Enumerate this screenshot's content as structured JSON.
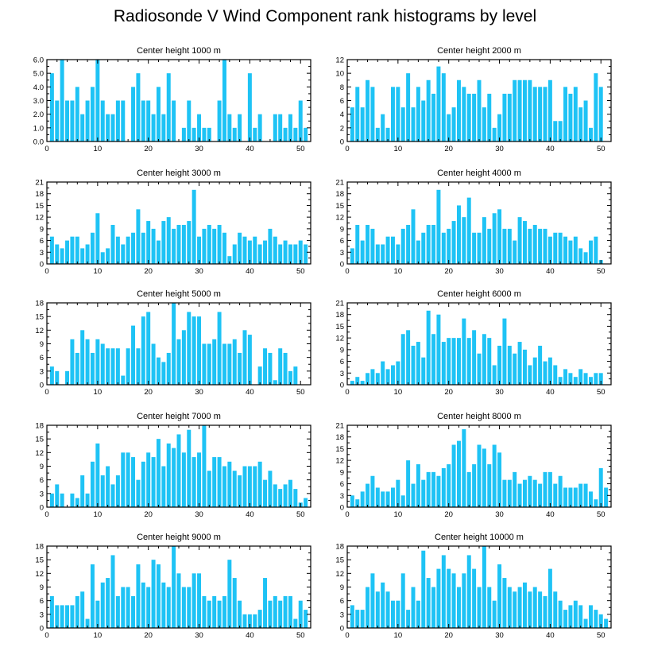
{
  "chart_data": {
    "type": "bar",
    "title": "Radiosonde V Wind Component rank histograms by level",
    "bar_color": "#1ec3f5",
    "x_ticks": [
      0,
      10,
      20,
      30,
      40,
      50
    ],
    "xlim": [
      0,
      52
    ],
    "panels": [
      {
        "title": "Center height 1000 m",
        "ylim": [
          0,
          6
        ],
        "y_ticks": [
          0,
          1,
          2,
          3,
          4,
          5,
          6
        ],
        "y_tick_labels": [
          "0.0",
          "1.0",
          "2.0",
          "3.0",
          "4.0",
          "5.0",
          "6.0"
        ],
        "values": [
          5,
          3,
          6,
          3,
          3,
          4,
          2,
          3,
          4,
          6,
          3,
          2,
          2,
          3,
          3,
          0,
          4,
          5,
          3,
          3,
          2,
          4,
          2,
          5,
          3,
          0,
          1,
          3,
          1,
          2,
          1,
          1,
          0,
          3,
          6,
          2,
          1,
          2,
          0,
          5,
          1,
          2,
          0,
          0,
          2,
          2,
          1,
          2,
          1,
          3,
          1
        ]
      },
      {
        "title": "Center height 2000 m",
        "ylim": [
          0,
          12
        ],
        "y_ticks": [
          0,
          2,
          4,
          6,
          8,
          10,
          12
        ],
        "y_tick_labels": [
          "0",
          "2",
          "4",
          "6",
          "8",
          "10",
          "12"
        ],
        "values": [
          5,
          8,
          5,
          9,
          8,
          2,
          4,
          2,
          8,
          8,
          5,
          10,
          5,
          8,
          6,
          9,
          7,
          11,
          10,
          4,
          5,
          9,
          8,
          7,
          7,
          9,
          5,
          7,
          2,
          4,
          7,
          7,
          9,
          9,
          9,
          9,
          8,
          8,
          8,
          9,
          3,
          3,
          8,
          7,
          8,
          5,
          6,
          2,
          10,
          8,
          0
        ]
      },
      {
        "title": "Center height 3000 m",
        "ylim": [
          0,
          21
        ],
        "y_ticks": [
          0,
          3,
          6,
          9,
          12,
          15,
          18,
          21
        ],
        "y_tick_labels": [
          "0",
          "3",
          "6",
          "9",
          "12",
          "15",
          "18",
          "21"
        ],
        "values": [
          7,
          5,
          4,
          6,
          7,
          7,
          4,
          5,
          8,
          13,
          3,
          4,
          10,
          7,
          5,
          7,
          8,
          14,
          8,
          11,
          9,
          6,
          11,
          12,
          9,
          10,
          10,
          11,
          19,
          7,
          9,
          10,
          9,
          10,
          8,
          2,
          5,
          8,
          7,
          6,
          7,
          5,
          6,
          9,
          7,
          5,
          6,
          5,
          5,
          6,
          5
        ]
      },
      {
        "title": "Center height 4000 m",
        "ylim": [
          0,
          21
        ],
        "y_ticks": [
          0,
          3,
          6,
          9,
          12,
          15,
          18,
          21
        ],
        "y_tick_labels": [
          "0",
          "3",
          "6",
          "9",
          "12",
          "15",
          "18",
          "21"
        ],
        "values": [
          4,
          10,
          6,
          10,
          9,
          5,
          5,
          7,
          7,
          5,
          9,
          10,
          14,
          6,
          8,
          10,
          10,
          19,
          8,
          9,
          11,
          15,
          12,
          17,
          8,
          8,
          12,
          9,
          13,
          14,
          9,
          9,
          6,
          12,
          11,
          9,
          10,
          9,
          9,
          7,
          8,
          8,
          7,
          6,
          7,
          4,
          3,
          6,
          7,
          1,
          0
        ]
      },
      {
        "title": "Center height 5000 m",
        "ylim": [
          0,
          18
        ],
        "y_ticks": [
          0,
          3,
          6,
          9,
          12,
          15,
          18
        ],
        "y_tick_labels": [
          "0",
          "3",
          "6",
          "9",
          "12",
          "15",
          "18"
        ],
        "values": [
          4,
          3,
          0,
          3,
          10,
          7,
          12,
          10,
          7,
          10,
          9,
          8,
          8,
          8,
          2,
          8,
          13,
          8,
          15,
          16,
          9,
          6,
          5,
          7,
          18,
          10,
          12,
          16,
          15,
          15,
          9,
          9,
          10,
          16,
          9,
          9,
          10,
          7,
          12,
          11,
          0,
          4,
          8,
          7,
          1,
          8,
          7,
          3,
          4,
          0,
          0
        ]
      },
      {
        "title": "Center height 6000 m",
        "ylim": [
          0,
          21
        ],
        "y_ticks": [
          0,
          3,
          6,
          9,
          12,
          15,
          18,
          21
        ],
        "y_tick_labels": [
          "0",
          "3",
          "6",
          "9",
          "12",
          "15",
          "18",
          "21"
        ],
        "values": [
          1,
          2,
          1,
          3,
          4,
          3,
          6,
          4,
          5,
          6,
          13,
          14,
          10,
          11,
          7,
          19,
          13,
          18,
          11,
          12,
          12,
          12,
          17,
          12,
          14,
          8,
          13,
          12,
          5,
          10,
          17,
          10,
          8,
          11,
          9,
          5,
          7,
          10,
          6,
          7,
          5,
          2,
          4,
          3,
          2,
          4,
          3,
          2,
          3,
          3,
          0
        ]
      },
      {
        "title": "Center height 7000 m",
        "ylim": [
          0,
          18
        ],
        "y_ticks": [
          0,
          3,
          6,
          9,
          12,
          15,
          18
        ],
        "y_tick_labels": [
          "0",
          "3",
          "6",
          "9",
          "12",
          "15",
          "18"
        ],
        "values": [
          3,
          5,
          3,
          0,
          3,
          2,
          7,
          3,
          10,
          14,
          7,
          9,
          5,
          7,
          12,
          12,
          11,
          6,
          10,
          12,
          11,
          15,
          9,
          14,
          13,
          16,
          12,
          17,
          11,
          12,
          18,
          8,
          11,
          11,
          9,
          10,
          8,
          7,
          9,
          9,
          9,
          10,
          6,
          8,
          5,
          4,
          5,
          6,
          4,
          1,
          2
        ]
      },
      {
        "title": "Center height 8000 m",
        "ylim": [
          0,
          21
        ],
        "y_ticks": [
          0,
          3,
          6,
          9,
          12,
          15,
          18,
          21
        ],
        "y_tick_labels": [
          "0",
          "3",
          "6",
          "9",
          "12",
          "15",
          "18",
          "21"
        ],
        "values": [
          3,
          2,
          4,
          6,
          8,
          5,
          4,
          4,
          5,
          7,
          3,
          12,
          6,
          11,
          7,
          9,
          9,
          8,
          10,
          11,
          16,
          17,
          20,
          9,
          11,
          16,
          15,
          11,
          16,
          14,
          7,
          7,
          9,
          6,
          7,
          8,
          7,
          6,
          9,
          9,
          6,
          8,
          5,
          5,
          5,
          6,
          6,
          4,
          2,
          10,
          5
        ]
      },
      {
        "title": "Center height 9000 m",
        "ylim": [
          0,
          18
        ],
        "y_ticks": [
          0,
          3,
          6,
          9,
          12,
          15,
          18
        ],
        "y_tick_labels": [
          "0",
          "3",
          "6",
          "9",
          "12",
          "15",
          "18"
        ],
        "values": [
          7,
          5,
          5,
          5,
          5,
          7,
          8,
          2,
          14,
          6,
          10,
          11,
          16,
          7,
          9,
          9,
          7,
          14,
          10,
          9,
          15,
          14,
          10,
          9,
          18,
          12,
          9,
          9,
          12,
          12,
          7,
          6,
          7,
          6,
          7,
          15,
          11,
          6,
          3,
          3,
          3,
          4,
          11,
          6,
          7,
          6,
          7,
          7,
          2,
          6,
          4
        ]
      },
      {
        "title": "Center height 10000 m",
        "ylim": [
          0,
          18
        ],
        "y_ticks": [
          0,
          3,
          6,
          9,
          12,
          15,
          18
        ],
        "y_tick_labels": [
          "0",
          "3",
          "6",
          "9",
          "12",
          "15",
          "18"
        ],
        "values": [
          5,
          4,
          4,
          9,
          12,
          8,
          10,
          8,
          6,
          6,
          12,
          4,
          9,
          6,
          17,
          11,
          9,
          13,
          16,
          13,
          12,
          9,
          12,
          16,
          13,
          9,
          18,
          9,
          6,
          14,
          11,
          9,
          8,
          9,
          10,
          8,
          9,
          8,
          7,
          13,
          8,
          6,
          4,
          5,
          6,
          5,
          2,
          5,
          4,
          3,
          2
        ]
      }
    ]
  }
}
